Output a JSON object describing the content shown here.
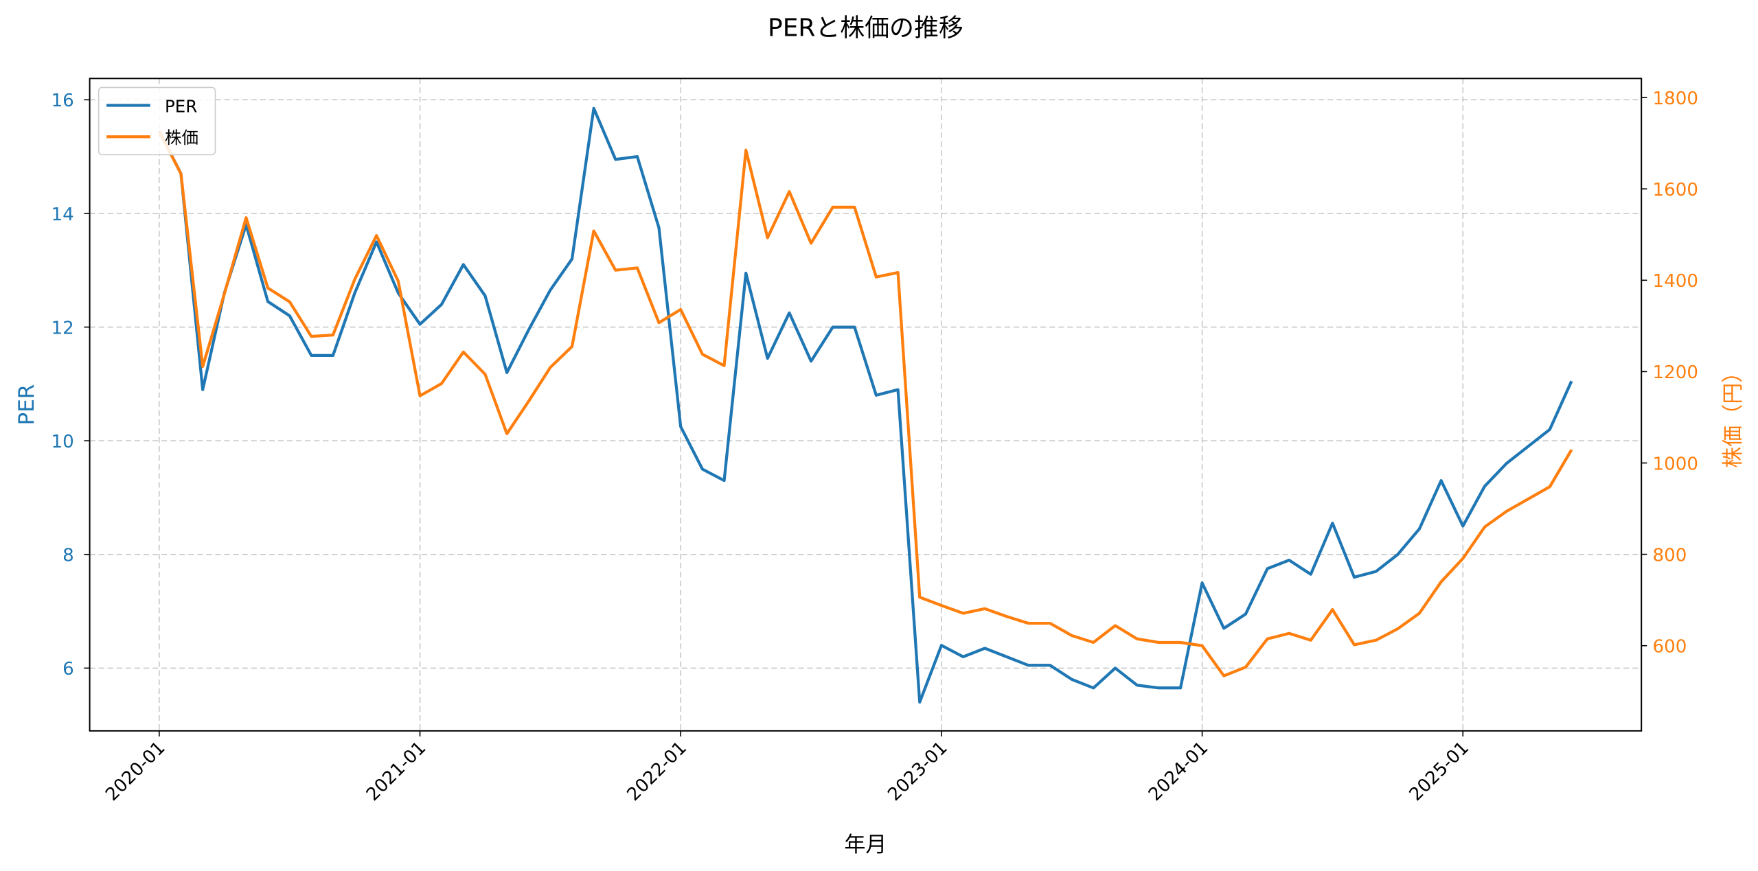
{
  "chart_data": {
    "type": "line",
    "title": "PERと株価の推移",
    "xlabel": "年月",
    "ylabel": "PER",
    "ylabel_right": "株価（円）",
    "x_ticks": [
      "2020-01",
      "2021-01",
      "2022-01",
      "2023-01",
      "2024-01",
      "2025-01"
    ],
    "y_ticks_left": [
      6,
      8,
      10,
      12,
      14,
      16
    ],
    "y_ticks_right": [
      600,
      800,
      1000,
      1200,
      1400,
      1600,
      1800
    ],
    "ylim_left": [
      4.9,
      16.4
    ],
    "ylim_right": [
      420,
      1820
    ],
    "grid": true,
    "legend_position": "upper left",
    "x": [
      "2020-01",
      "2020-02",
      "2020-03",
      "2020-04",
      "2020-05",
      "2020-06",
      "2020-07",
      "2020-08",
      "2020-09",
      "2020-10",
      "2020-11",
      "2020-12",
      "2021-01",
      "2021-02",
      "2021-03",
      "2021-04",
      "2021-05",
      "2021-06",
      "2021-07",
      "2021-08",
      "2021-09",
      "2021-10",
      "2021-11",
      "2021-12",
      "2022-01",
      "2022-02",
      "2022-03",
      "2022-04",
      "2022-05",
      "2022-06",
      "2022-07",
      "2022-08",
      "2022-09",
      "2022-10",
      "2022-11",
      "2022-12",
      "2023-01",
      "2023-02",
      "2023-03",
      "2023-04",
      "2023-05",
      "2023-06",
      "2023-07",
      "2023-08",
      "2023-09",
      "2023-10",
      "2023-11",
      "2023-12",
      "2024-01",
      "2024-02",
      "2024-03",
      "2024-04",
      "2024-05",
      "2024-06",
      "2024-07",
      "2024-08",
      "2024-09",
      "2024-10",
      "2024-11",
      "2024-12",
      "2025-01",
      "2025-02",
      "2025-03",
      "2025-04",
      "2025-05",
      "2025-06"
    ],
    "series": [
      {
        "name": "PER",
        "axis": "left",
        "color": "#1f77b4",
        "values": [
          15.45,
          14.7,
          10.9,
          12.6,
          13.8,
          12.45,
          12.2,
          11.5,
          11.5,
          12.6,
          13.5,
          12.6,
          12.05,
          12.4,
          13.1,
          12.55,
          11.2,
          11.95,
          12.65,
          13.2,
          15.85,
          14.95,
          15.0,
          13.75,
          10.25,
          9.5,
          9.3,
          12.95,
          11.45,
          12.25,
          11.4,
          12.0,
          12.0,
          10.8,
          10.9,
          5.4,
          6.4,
          6.2,
          6.35,
          6.2,
          6.05,
          6.05,
          5.8,
          5.65,
          6.0,
          5.7,
          5.65,
          5.65,
          7.5,
          6.7,
          6.95,
          7.75,
          7.9,
          7.65,
          8.55,
          7.6,
          7.7,
          8.0,
          8.45,
          9.3,
          8.5,
          9.2,
          9.6,
          9.9,
          10.2,
          11.05
        ]
      },
      {
        "name": "株価",
        "axis": "right",
        "color": "#ff7f0e",
        "values": [
          1726,
          1633,
          1211,
          1370,
          1537,
          1383,
          1353,
          1277,
          1280,
          1402,
          1498,
          1398,
          1147,
          1174,
          1243,
          1194,
          1064,
          1135,
          1209,
          1255,
          1508,
          1422,
          1427,
          1307,
          1336,
          1238,
          1213,
          1685,
          1493,
          1594,
          1481,
          1560,
          1560,
          1407,
          1417,
          706,
          688,
          671,
          681,
          664,
          649,
          649,
          622,
          607,
          644,
          615,
          607,
          607,
          600,
          534,
          553,
          615,
          627,
          612,
          679,
          602,
          612,
          637,
          671,
          740,
          791,
          860,
          894,
          921,
          948,
          1029
        ]
      }
    ]
  },
  "legend": {
    "items": [
      {
        "label": "PER",
        "color": "#1f77b4"
      },
      {
        "label": "株価",
        "color": "#ff7f0e"
      }
    ]
  }
}
